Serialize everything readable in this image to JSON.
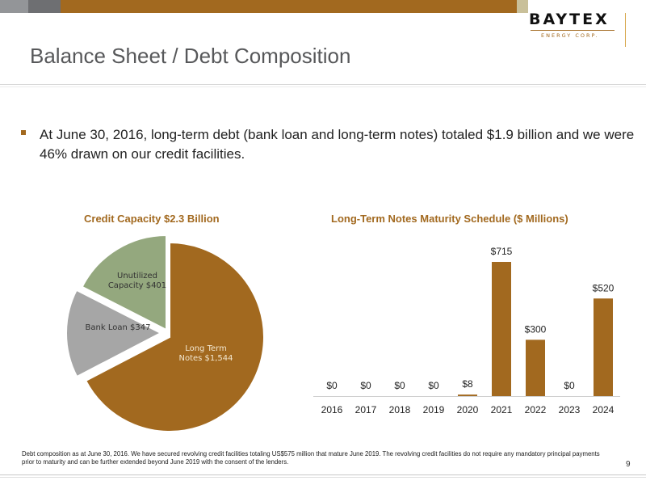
{
  "brand": {
    "logo_word": "BAYTEX",
    "logo_sub": "ENERGY CORP.",
    "colors": {
      "accent": "#a2691f",
      "gray": "#939598",
      "dark_gray": "#6e6f72",
      "sand": "#c9c09a"
    }
  },
  "header": {
    "title": "Balance Sheet  / Debt Composition"
  },
  "body": {
    "bullet": "At June 30, 2016, long-term debt (bank loan and long-term notes) totaled  $1.9 billion and we were 46% drawn on our credit facilities."
  },
  "chart_data": [
    {
      "type": "pie",
      "title": "Credit Capacity $2.3 Billion",
      "slices": [
        {
          "label_line1": "Long Term",
          "label_line2": "Notes $1,544",
          "value": 1544,
          "color": "#a2691f"
        },
        {
          "label_line1": "Bank Loan $347",
          "label_line2": "",
          "value": 347,
          "color": "#a6a6a6"
        },
        {
          "label_line1": "Unutilized",
          "label_line2": "Capacity $401",
          "value": 401,
          "color": "#94a87e"
        }
      ]
    },
    {
      "type": "bar",
      "title": "Long-Term Notes Maturity Schedule ($ Millions)",
      "categories": [
        "2016",
        "2017",
        "2018",
        "2019",
        "2020",
        "2021",
        "2022",
        "2023",
        "2024"
      ],
      "values": [
        0,
        0,
        0,
        0,
        8,
        715,
        300,
        0,
        520
      ],
      "data_labels": [
        "$0",
        "$0",
        "$0",
        "$0",
        "$8",
        "$715",
        "$300",
        "$0",
        "$520"
      ],
      "bar_color": "#a2691f",
      "ylim": [
        0,
        715
      ]
    }
  ],
  "footer": {
    "footnote": "Debt composition as at June 30, 2016. We have secured revolving credit facilities totaling US$575 million that mature June 2019. The revolving credit facilities do not require any mandatory principal payments prior to maturity and can be further extended beyond June 2019 with the consent of the lenders.",
    "page_number": "9"
  }
}
